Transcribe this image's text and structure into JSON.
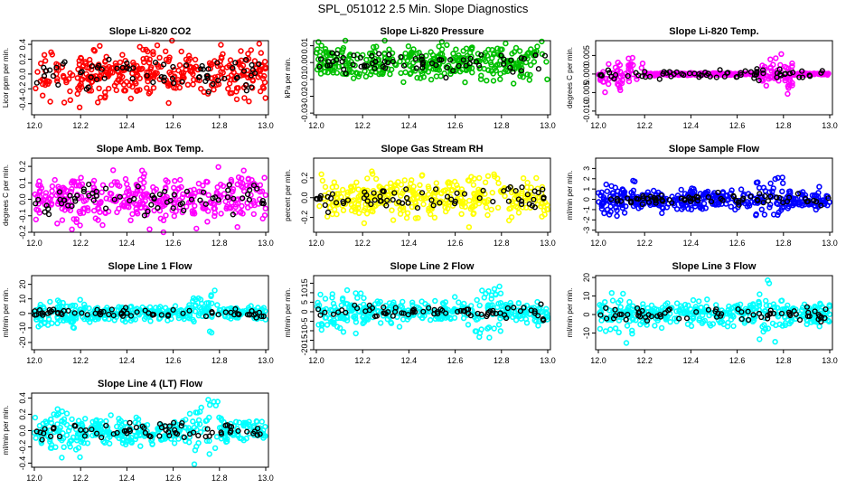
{
  "page_title": "SPL_051012  2.5 Min. Slope Diagnostics",
  "chart_data": [
    {
      "type": "scatter",
      "title": "Slope Li-820 CO2",
      "ylabel": "Licor ppm per min.",
      "color": "#ff0000",
      "xlim": [
        12.0,
        13.0
      ],
      "ylim": [
        -0.55,
        0.45
      ],
      "yticks": [
        -0.4,
        -0.2,
        0.0,
        0.2,
        0.4
      ],
      "ytick_labels": [
        "-0.4",
        "-0.2",
        "0.0",
        "0.2",
        "0.4"
      ],
      "x_ticks": [
        "12.0",
        "12.2",
        "12.4",
        "12.6",
        "12.8",
        "13.0"
      ],
      "spread": 0.17,
      "seed": 11
    },
    {
      "type": "scatter",
      "title": "Slope Li-820 Pressure",
      "ylabel": "kPa per min.",
      "color": "#00c000",
      "xlim": [
        12.0,
        13.0
      ],
      "ylim": [
        -0.031,
        0.013
      ],
      "yticks": [
        -0.03,
        -0.02,
        -0.01,
        0.0,
        0.01
      ],
      "ytick_labels": [
        "-0.03",
        "-0.02",
        "-0.01",
        "0.00",
        "0.01"
      ],
      "x_ticks": [
        "12.0",
        "12.2",
        "12.4",
        "12.6",
        "12.8",
        "13.0"
      ],
      "spread": 0.005,
      "seed": 23
    },
    {
      "type": "scatter",
      "title": "Slope Li-820 Temp.",
      "ylabel": "degrees C per min.",
      "color": "#ff00ff",
      "xlim": [
        12.0,
        13.0
      ],
      "ylim": [
        -0.011,
        0.009
      ],
      "yticks": [
        -0.01,
        -0.005,
        0.0,
        0.005
      ],
      "ytick_labels": [
        "-0.010",
        "-0.005",
        "0.000",
        "0.005"
      ],
      "x_ticks": [
        "12.0",
        "12.2",
        "12.4",
        "12.6",
        "12.8",
        "13.0"
      ],
      "spread": 0.0012,
      "seed": 37
    },
    {
      "type": "scatter",
      "title": "Slope Amb. Box Temp.",
      "ylabel": "degrees C per min.",
      "color": "#ff00ff",
      "xlim": [
        12.0,
        13.0
      ],
      "ylim": [
        -0.2,
        0.25
      ],
      "yticks": [
        -0.2,
        -0.1,
        0.0,
        0.1,
        0.2
      ],
      "ytick_labels": [
        "-0.2",
        "-0.1",
        "0.0",
        "0.1",
        "0.2"
      ],
      "x_ticks": [
        "12.0",
        "12.2",
        "12.4",
        "12.6",
        "12.8",
        "13.0"
      ],
      "spread": 0.07,
      "seed": 41
    },
    {
      "type": "scatter",
      "title": "Slope Gas Stream RH",
      "ylabel": "percent per min.",
      "color": "#ffff00",
      "xlim": [
        12.0,
        13.0
      ],
      "ylim": [
        -0.35,
        0.4
      ],
      "yticks": [
        -0.2,
        0.0,
        0.2
      ],
      "ytick_labels": [
        "-0.2",
        "0.0",
        "0.2"
      ],
      "x_ticks": [
        "12.0",
        "12.2",
        "12.4",
        "12.6",
        "12.8",
        "13.0"
      ],
      "spread": 0.1,
      "seed": 53
    },
    {
      "type": "scatter",
      "title": "Slope Sample Flow",
      "ylabel": "ml/min per min.",
      "color": "#0000ff",
      "xlim": [
        12.0,
        13.0
      ],
      "ylim": [
        -3.2,
        4.0
      ],
      "yticks": [
        -3,
        -2,
        -1,
        0,
        1,
        2,
        3
      ],
      "ytick_labels": [
        "-3",
        "-2",
        "-1",
        "0",
        "1",
        "2",
        "3"
      ],
      "x_ticks": [
        "12.0",
        "12.2",
        "12.4",
        "12.6",
        "12.8",
        "13.0"
      ],
      "spread": 0.45,
      "seed": 67
    },
    {
      "type": "scatter",
      "title": "Slope Line 1 Flow",
      "ylabel": "ml/min per min.",
      "color": "#00ffff",
      "xlim": [
        12.0,
        13.0
      ],
      "ylim": [
        -25,
        26
      ],
      "yticks": [
        -20,
        -10,
        0,
        10,
        20
      ],
      "ytick_labels": [
        "-20",
        "-10",
        "0",
        "10",
        "20"
      ],
      "x_ticks": [
        "12.0",
        "12.2",
        "12.4",
        "12.6",
        "12.8",
        "13.0"
      ],
      "spread": 2.5,
      "seed": 71
    },
    {
      "type": "scatter",
      "title": "Slope Line 2 Flow",
      "ylabel": "ml/min per min.",
      "color": "#00ffff",
      "xlim": [
        12.0,
        13.0
      ],
      "ylim": [
        -20,
        19
      ],
      "yticks": [
        -20,
        -15,
        -10,
        -5,
        0,
        5,
        10,
        15
      ],
      "ytick_labels": [
        "-20",
        "-15",
        "-10",
        "-5",
        "0",
        "5",
        "10",
        "15"
      ],
      "x_ticks": [
        "12.0",
        "12.2",
        "12.4",
        "12.6",
        "12.8",
        "13.0"
      ],
      "spread": 2.8,
      "seed": 83
    },
    {
      "type": "scatter",
      "title": "Slope Line 3 Flow",
      "ylabel": "ml/min per min.",
      "color": "#00ffff",
      "xlim": [
        12.0,
        13.0
      ],
      "ylim": [
        -19,
        21
      ],
      "yticks": [
        -10,
        0,
        10,
        20
      ],
      "ytick_labels": [
        "-10",
        "0",
        "10",
        "20"
      ],
      "x_ticks": [
        "12.0",
        "12.2",
        "12.4",
        "12.6",
        "12.8",
        "13.0"
      ],
      "spread": 3.0,
      "seed": 97
    },
    {
      "type": "scatter",
      "title": "Slope Line 4 (LT) Flow",
      "ylabel": "ml/min per min.",
      "color": "#00ffff",
      "xlim": [
        12.0,
        13.0
      ],
      "ylim": [
        -0.45,
        0.46
      ],
      "yticks": [
        -0.4,
        -0.2,
        0.0,
        0.2,
        0.4
      ],
      "ytick_labels": [
        "-0.4",
        "-0.2",
        "0.0",
        "0.2",
        "0.4"
      ],
      "x_ticks": [
        "12.0",
        "12.2",
        "12.4",
        "12.6",
        "12.8",
        "13.0"
      ],
      "spread": 0.08,
      "seed": 101
    }
  ]
}
